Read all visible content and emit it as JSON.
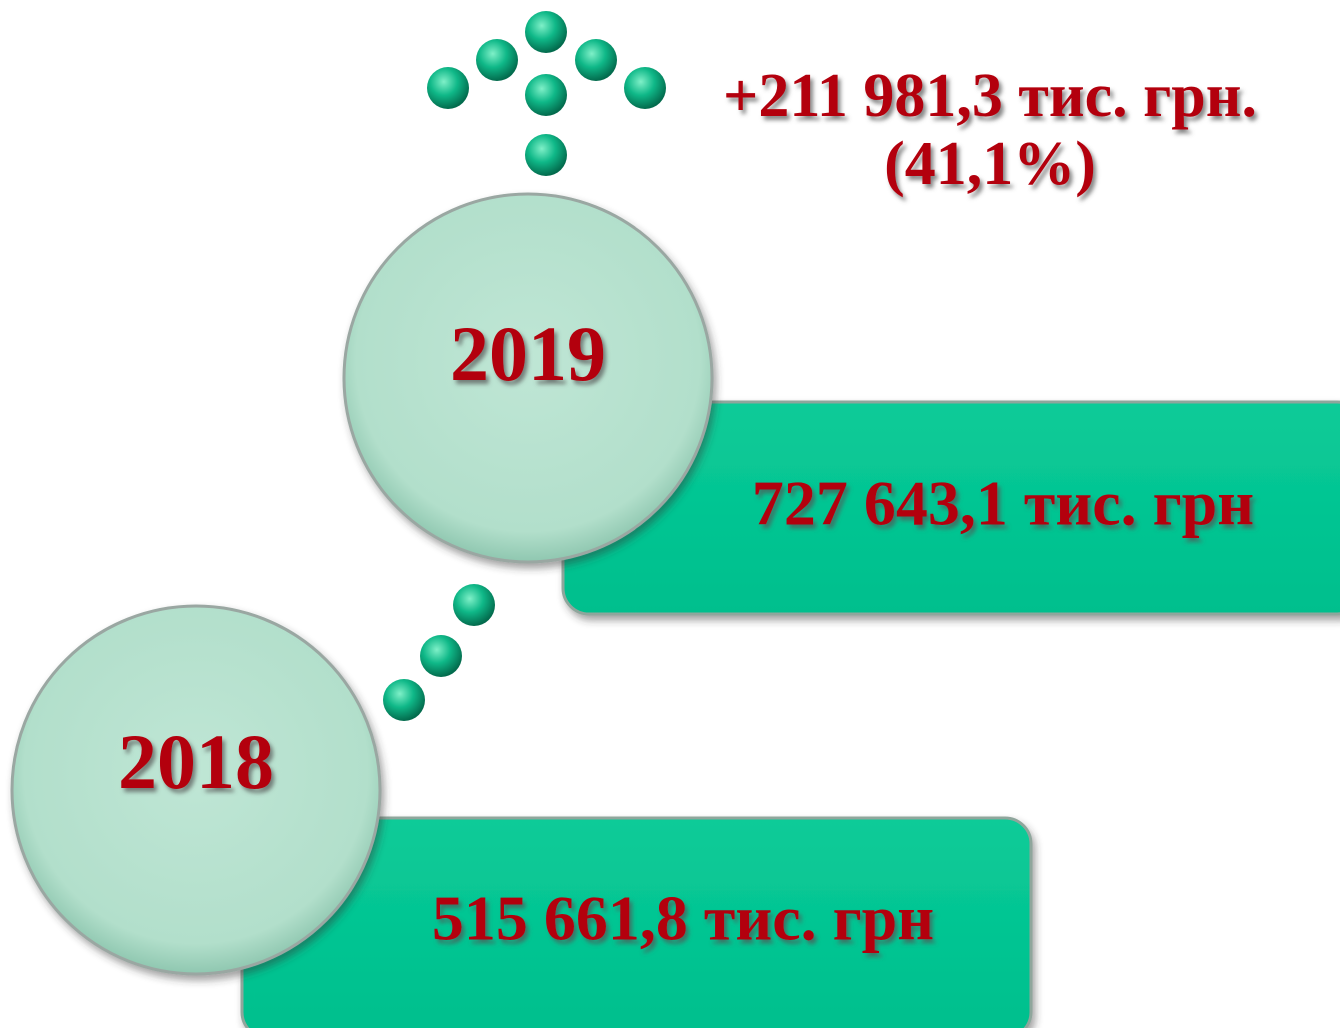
{
  "change": {
    "lines": [
      "+211 981,3 тис. грн.",
      "(41,1%)"
    ]
  },
  "items": [
    {
      "year": "2019",
      "amount": "727 643,1 тис. грн"
    },
    {
      "year": "2018",
      "amount": "515 661,8 тис. грн"
    }
  ]
}
